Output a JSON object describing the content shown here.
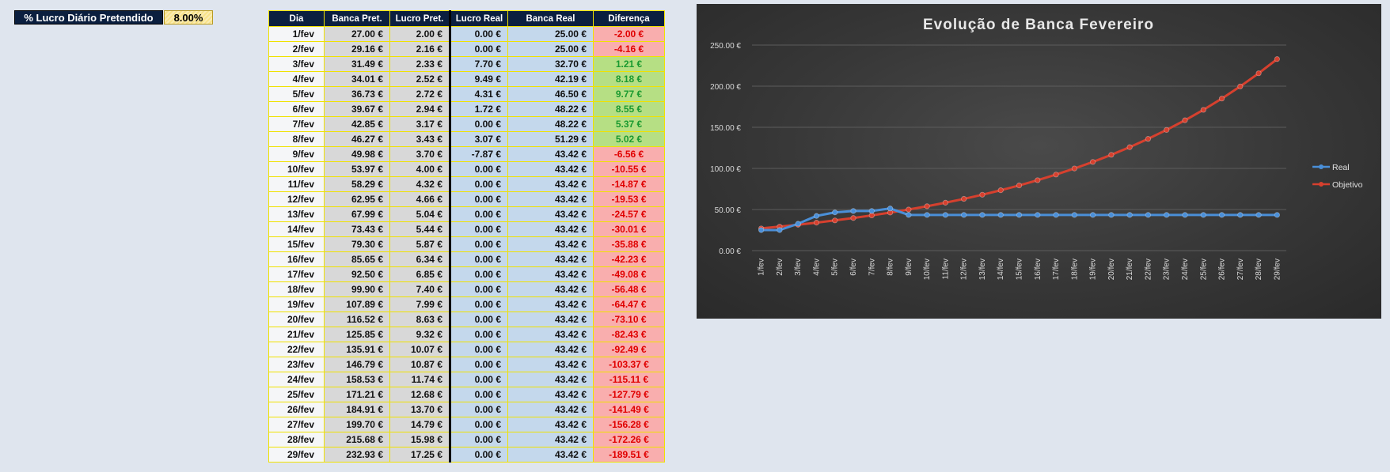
{
  "parameter": {
    "label": "% Lucro Diário Pretendido",
    "value": "8.00%"
  },
  "table": {
    "headers": [
      "Dia",
      "Banca Pret.",
      "Lucro Pret.",
      "Lucro Real",
      "Banca Real",
      "Diferença"
    ],
    "rows": [
      [
        "1/fev",
        "27.00 €",
        "2.00 €",
        "0.00 €",
        "25.00 €",
        "-2.00 €"
      ],
      [
        "2/fev",
        "29.16 €",
        "2.16 €",
        "0.00 €",
        "25.00 €",
        "-4.16 €"
      ],
      [
        "3/fev",
        "31.49 €",
        "2.33 €",
        "7.70 €",
        "32.70 €",
        "1.21 €"
      ],
      [
        "4/fev",
        "34.01 €",
        "2.52 €",
        "9.49 €",
        "42.19 €",
        "8.18 €"
      ],
      [
        "5/fev",
        "36.73 €",
        "2.72 €",
        "4.31 €",
        "46.50 €",
        "9.77 €"
      ],
      [
        "6/fev",
        "39.67 €",
        "2.94 €",
        "1.72 €",
        "48.22 €",
        "8.55 €"
      ],
      [
        "7/fev",
        "42.85 €",
        "3.17 €",
        "0.00 €",
        "48.22 €",
        "5.37 €"
      ],
      [
        "8/fev",
        "46.27 €",
        "3.43 €",
        "3.07 €",
        "51.29 €",
        "5.02 €"
      ],
      [
        "9/fev",
        "49.98 €",
        "3.70 €",
        "-7.87 €",
        "43.42 €",
        "-6.56 €"
      ],
      [
        "10/fev",
        "53.97 €",
        "4.00 €",
        "0.00 €",
        "43.42 €",
        "-10.55 €"
      ],
      [
        "11/fev",
        "58.29 €",
        "4.32 €",
        "0.00 €",
        "43.42 €",
        "-14.87 €"
      ],
      [
        "12/fev",
        "62.95 €",
        "4.66 €",
        "0.00 €",
        "43.42 €",
        "-19.53 €"
      ],
      [
        "13/fev",
        "67.99 €",
        "5.04 €",
        "0.00 €",
        "43.42 €",
        "-24.57 €"
      ],
      [
        "14/fev",
        "73.43 €",
        "5.44 €",
        "0.00 €",
        "43.42 €",
        "-30.01 €"
      ],
      [
        "15/fev",
        "79.30 €",
        "5.87 €",
        "0.00 €",
        "43.42 €",
        "-35.88 €"
      ],
      [
        "16/fev",
        "85.65 €",
        "6.34 €",
        "0.00 €",
        "43.42 €",
        "-42.23 €"
      ],
      [
        "17/fev",
        "92.50 €",
        "6.85 €",
        "0.00 €",
        "43.42 €",
        "-49.08 €"
      ],
      [
        "18/fev",
        "99.90 €",
        "7.40 €",
        "0.00 €",
        "43.42 €",
        "-56.48 €"
      ],
      [
        "19/fev",
        "107.89 €",
        "7.99 €",
        "0.00 €",
        "43.42 €",
        "-64.47 €"
      ],
      [
        "20/fev",
        "116.52 €",
        "8.63 €",
        "0.00 €",
        "43.42 €",
        "-73.10 €"
      ],
      [
        "21/fev",
        "125.85 €",
        "9.32 €",
        "0.00 €",
        "43.42 €",
        "-82.43 €"
      ],
      [
        "22/fev",
        "135.91 €",
        "10.07 €",
        "0.00 €",
        "43.42 €",
        "-92.49 €"
      ],
      [
        "23/fev",
        "146.79 €",
        "10.87 €",
        "0.00 €",
        "43.42 €",
        "-103.37 €"
      ],
      [
        "24/fev",
        "158.53 €",
        "11.74 €",
        "0.00 €",
        "43.42 €",
        "-115.11 €"
      ],
      [
        "25/fev",
        "171.21 €",
        "12.68 €",
        "0.00 €",
        "43.42 €",
        "-127.79 €"
      ],
      [
        "26/fev",
        "184.91 €",
        "13.70 €",
        "0.00 €",
        "43.42 €",
        "-141.49 €"
      ],
      [
        "27/fev",
        "199.70 €",
        "14.79 €",
        "0.00 €",
        "43.42 €",
        "-156.28 €"
      ],
      [
        "28/fev",
        "215.68 €",
        "15.98 €",
        "0.00 €",
        "43.42 €",
        "-172.26 €"
      ],
      [
        "29/fev",
        "232.93 €",
        "17.25 €",
        "0.00 €",
        "43.42 €",
        "-189.51 €"
      ]
    ]
  },
  "colors": {
    "positive_bg": "#b6df84",
    "positive_text": "#1a9a30",
    "negative_bg": "#f9aeae",
    "negative_text": "#e00000",
    "real_series": "#4a8fd8",
    "objetivo_series": "#d6402e"
  },
  "chart_data": {
    "type": "line",
    "title": "Evolução de Banca Fevereiro",
    "x": [
      "1/fev",
      "2/fev",
      "3/fev",
      "4/fev",
      "5/fev",
      "6/fev",
      "7/fev",
      "8/fev",
      "9/fev",
      "10/fev",
      "11/fev",
      "12/fev",
      "13/fev",
      "14/fev",
      "15/fev",
      "16/fev",
      "17/fev",
      "18/fev",
      "19/fev",
      "20/fev",
      "21/fev",
      "22/fev",
      "23/fev",
      "24/fev",
      "25/fev",
      "26/fev",
      "27/fev",
      "28/fev",
      "29/fev"
    ],
    "series": [
      {
        "name": "Real",
        "values": [
          25.0,
          25.0,
          32.7,
          42.19,
          46.5,
          48.22,
          48.22,
          51.29,
          43.42,
          43.42,
          43.42,
          43.42,
          43.42,
          43.42,
          43.42,
          43.42,
          43.42,
          43.42,
          43.42,
          43.42,
          43.42,
          43.42,
          43.42,
          43.42,
          43.42,
          43.42,
          43.42,
          43.42,
          43.42
        ]
      },
      {
        "name": "Objetivo",
        "values": [
          27.0,
          29.16,
          31.49,
          34.01,
          36.73,
          39.67,
          42.85,
          46.27,
          49.98,
          53.97,
          58.29,
          62.95,
          67.99,
          73.43,
          79.3,
          85.65,
          92.5,
          99.9,
          107.89,
          116.52,
          125.85,
          135.91,
          146.79,
          158.53,
          171.21,
          184.91,
          199.7,
          215.68,
          232.93
        ]
      }
    ],
    "y_ticks": [
      "0.00 €",
      "50.00 €",
      "100.00 €",
      "150.00 €",
      "200.00 €",
      "250.00 €"
    ],
    "ylim": [
      0,
      250
    ],
    "grid": true,
    "legend": "right"
  }
}
